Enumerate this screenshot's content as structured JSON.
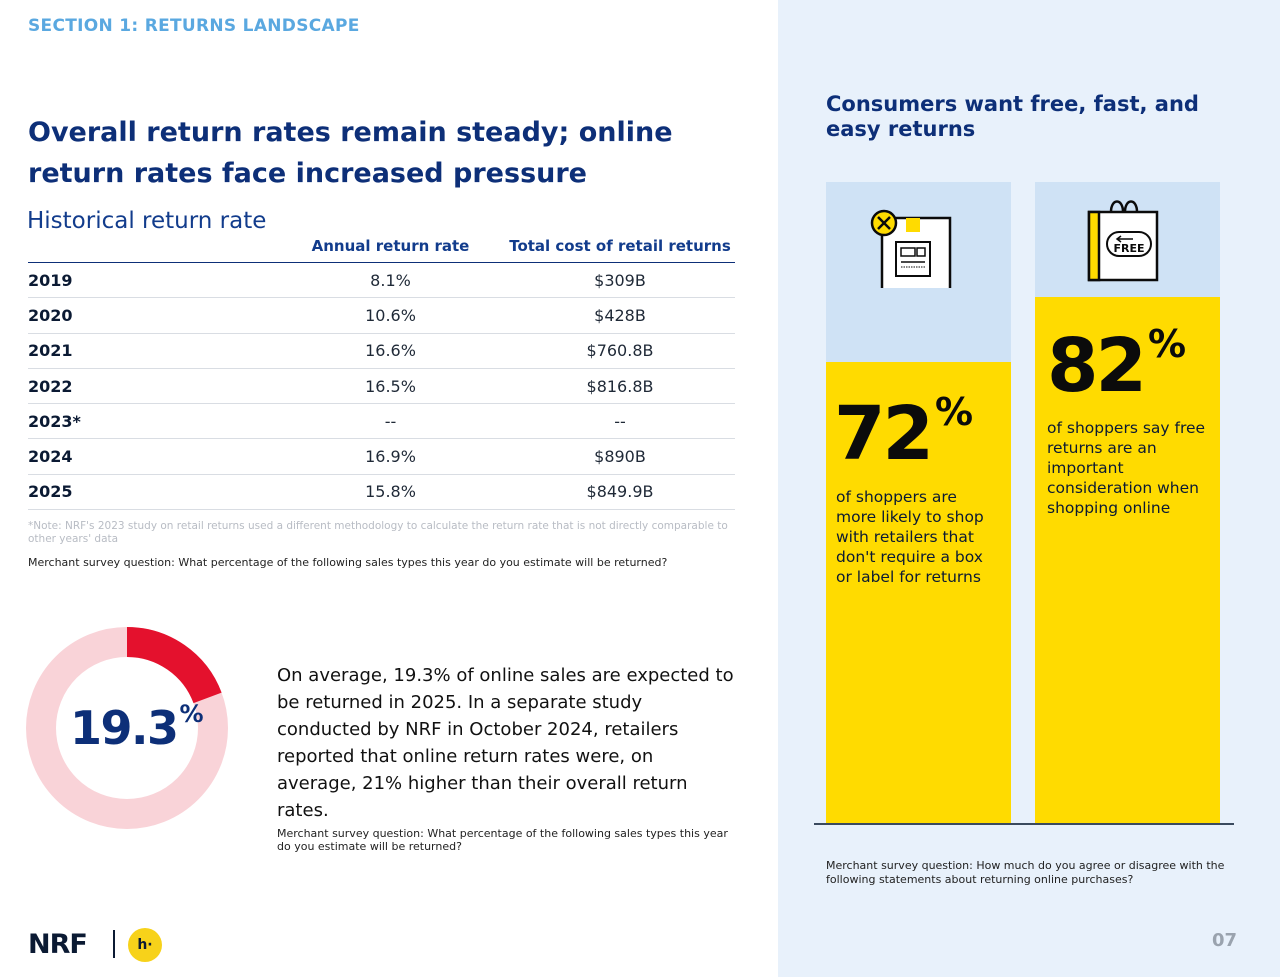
{
  "section_label": "SECTION 1: RETURNS LANDSCAPE",
  "main_title": "Overall return rates remain steady; online return rates face increased pressure",
  "table": {
    "title": "Historical return rate",
    "headers": [
      "",
      "Annual return rate",
      "Total cost of retail returns"
    ],
    "rows": [
      [
        "2019",
        "8.1%",
        "$309B"
      ],
      [
        "2020",
        "10.6%",
        "$428B"
      ],
      [
        "2021",
        "16.6%",
        "$760.8B"
      ],
      [
        "2022",
        "16.5%",
        "$816.8B"
      ],
      [
        "2023*",
        "--",
        "--"
      ],
      [
        "2024",
        "16.9%",
        "$890B"
      ],
      [
        "2025",
        "15.8%",
        "$849.9B"
      ]
    ]
  },
  "note": "*Note: NRF's 2023 study on retail returns used a different methodology to calculate the return rate that is not directly comparable to other years' data",
  "survey_question_1": "Merchant survey question: What percentage of the following sales types this year do you estimate will be returned?",
  "donut": {
    "value": 19.3,
    "number": "19.3",
    "unit": "%",
    "colors": {
      "filled": "#e4112d",
      "remainder": "#f9d3d8"
    }
  },
  "body_text": "On average, 19.3% of online sales are expected to be returned in 2025. In a separate study conducted by NRF in October 2024, retailers reported that online return rates were, on average, 21% higher than their overall return rates.",
  "survey_question_2": "Merchant survey question: What percentage of the following sales types this year do you estimate will be returned?",
  "logo": {
    "brand": "NRF",
    "mark": "h·"
  },
  "right_panel": {
    "title": "Consumers want free, fast, and easy returns",
    "stats": [
      {
        "value": 72,
        "number": "72",
        "unit": "%",
        "text": "of shoppers are more likely to shop with retailers that don't require a box or label for returns",
        "icon": "box-label-icon"
      },
      {
        "value": 82,
        "number": "82",
        "unit": "%",
        "text": "of shoppers say free returns are an important consideration when shopping online",
        "icon": "free-returns-bag-icon",
        "icon_text": "FREE"
      }
    ],
    "survey_question": "Merchant survey question: How much do you agree or disagree with the following statements about returning online purchases?",
    "colors": {
      "fill": "#ffdb00",
      "track": "#cfe2f5"
    }
  },
  "page_number": "07"
}
